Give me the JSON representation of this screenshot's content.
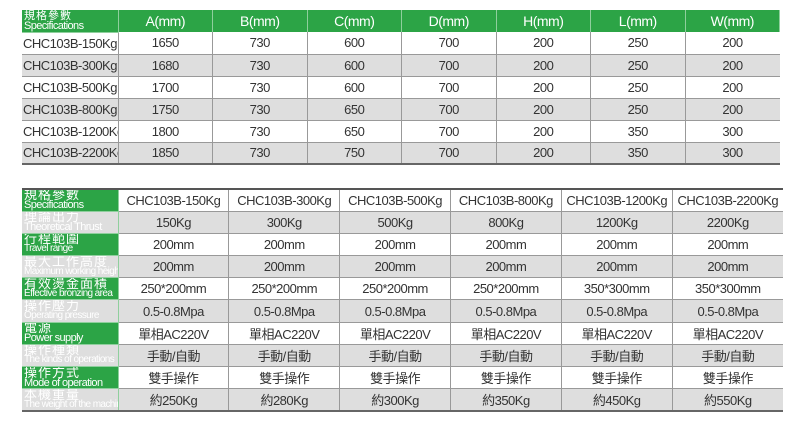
{
  "dimensions_table": {
    "header": {
      "cn": "規格參數",
      "en": "Specifications"
    },
    "columns": [
      "A(mm)",
      "B(mm)",
      "C(mm)",
      "D(mm)",
      "H(mm)",
      "L(mm)",
      "W(mm)"
    ],
    "rows": [
      {
        "model": "CHC103B-150Kg",
        "values": [
          "1650",
          "730",
          "600",
          "700",
          "200",
          "250",
          "200"
        ]
      },
      {
        "model": "CHC103B-300Kg",
        "values": [
          "1680",
          "730",
          "600",
          "700",
          "200",
          "250",
          "200"
        ]
      },
      {
        "model": "CHC103B-500Kg",
        "values": [
          "1700",
          "730",
          "600",
          "700",
          "200",
          "250",
          "200"
        ]
      },
      {
        "model": "CHC103B-800Kg",
        "values": [
          "1750",
          "730",
          "650",
          "700",
          "200",
          "250",
          "200"
        ]
      },
      {
        "model": "CHC103B-1200Kg",
        "values": [
          "1800",
          "730",
          "650",
          "700",
          "200",
          "350",
          "300"
        ]
      },
      {
        "model": "CHC103B-2200Kg",
        "values": [
          "1850",
          "730",
          "750",
          "700",
          "200",
          "350",
          "300"
        ]
      }
    ]
  },
  "specs_table": {
    "rows": [
      {
        "cn": "規格參數",
        "en": "Specifications",
        "values": [
          "CHC103B-150Kg",
          "CHC103B-300Kg",
          "CHC103B-500Kg",
          "CHC103B-800Kg",
          "CHC103B-1200Kg",
          "CHC103B-2200Kg"
        ]
      },
      {
        "cn": "理論出力",
        "en": "Theoretical Thrust",
        "values": [
          "150Kg",
          "300Kg",
          "500Kg",
          "800Kg",
          "1200Kg",
          "2200Kg"
        ]
      },
      {
        "cn": "行程範圍",
        "en": "Travel range",
        "values": [
          "200mm",
          "200mm",
          "200mm",
          "200mm",
          "200mm",
          "200mm"
        ]
      },
      {
        "cn": "最大工作高度",
        "en": "Maximum working height",
        "values": [
          "200mm",
          "200mm",
          "200mm",
          "200mm",
          "200mm",
          "200mm"
        ]
      },
      {
        "cn": "有效燙金面積",
        "en": "Effective bronzing area",
        "values": [
          "250*200mm",
          "250*200mm",
          "250*200mm",
          "250*200mm",
          "350*300mm",
          "350*300mm"
        ]
      },
      {
        "cn": "操作壓力",
        "en": "Operating pressure",
        "values": [
          "0.5-0.8Mpa",
          "0.5-0.8Mpa",
          "0.5-0.8Mpa",
          "0.5-0.8Mpa",
          "0.5-0.8Mpa",
          "0.5-0.8Mpa"
        ]
      },
      {
        "cn": "電源",
        "en": "Power supply",
        "values": [
          "單相AC220V",
          "單相AC220V",
          "單相AC220V",
          "單相AC220V",
          "單相AC220V",
          "單相AC220V"
        ]
      },
      {
        "cn": "操作種類",
        "en": "The kinds of operations",
        "values": [
          "手動/自動",
          "手動/自動",
          "手動/自動",
          "手動/自動",
          "手動/自動",
          "手動/自動"
        ]
      },
      {
        "cn": "操作方式",
        "en": "Mode of operation",
        "values": [
          "雙手操作",
          "雙手操作",
          "雙手操作",
          "雙手操作",
          "雙手操作",
          "雙手操作"
        ]
      },
      {
        "cn": "本機重量",
        "en": "The weight of the machine",
        "values": [
          "約250Kg",
          "約280Kg",
          "約300Kg",
          "約350Kg",
          "約450Kg",
          "約550Kg"
        ]
      }
    ]
  },
  "colors": {
    "header_green": "#2ca446",
    "alt_row": "#dedede"
  }
}
